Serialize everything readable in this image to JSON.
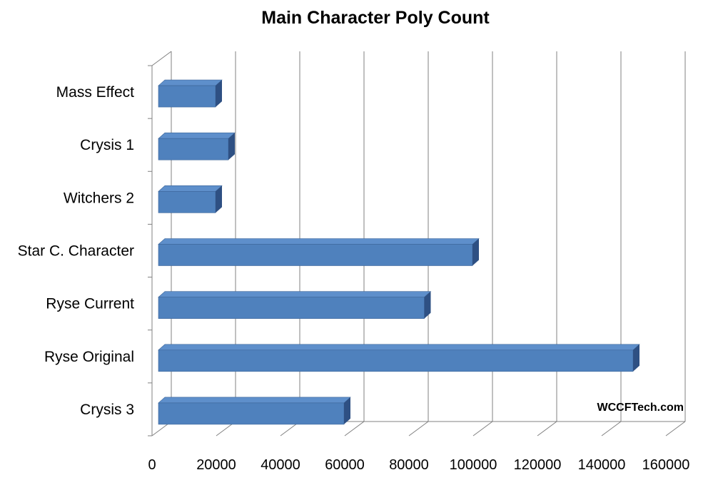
{
  "chart_data": {
    "type": "bar",
    "orientation": "horizontal",
    "title": "Main Character Poly Count",
    "categories": [
      "Mass Effect",
      "Crysis 1",
      "Witchers 2",
      "Star C. Character",
      "Ryse Current",
      "Ryse Original",
      "Crysis 3"
    ],
    "values": [
      20000,
      24000,
      20000,
      100000,
      85000,
      150000,
      60000
    ],
    "xlim": [
      0,
      160000
    ],
    "xticks": [
      "0",
      "20000",
      "40000",
      "60000",
      "80000",
      "100000",
      "120000",
      "140000",
      "160000"
    ],
    "xlabel": "",
    "ylabel": "",
    "grid": true,
    "bar_color": "#4F81BD",
    "annotation": "WCCFTech.com"
  }
}
